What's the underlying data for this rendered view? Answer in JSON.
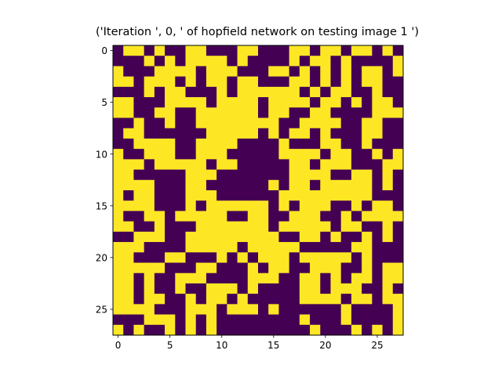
{
  "chart_data": {
    "type": "heatmap",
    "title": "('Iteration ', 0, ' of hopfield network on testing image 1 ')",
    "xlabel": "",
    "ylabel": "",
    "colormap": "viridis",
    "colors": {
      "low": "#440154",
      "high": "#fde725"
    },
    "xlim": [
      -0.5,
      27.5
    ],
    "ylim": [
      27.5,
      -0.5
    ],
    "xticks": [
      0,
      5,
      10,
      15,
      20,
      25
    ],
    "yticks": [
      0,
      5,
      10,
      15,
      20,
      25
    ],
    "grid": false,
    "rows": [
      "0110100110001100011011011010",
      "0001010111101000010110100001",
      "1000111101110001101010101101",
      "1101110101101100011010101100",
      "0001011000101111110101100100",
      "1100011110111101111011010110",
      "1100110011111101100110000111",
      "0010010011111111001111001100",
      "0110000001111101011010001100",
      "0011110011110000100011001000",
      "1001110011100000111101100101",
      "1110111110110000011011100011",
      "1100000111000000011110011010",
      "1111000110000001011011111010",
      "1011000111000000111111111000",
      "1111000101111110101110010110",
      "1001101111100110011100101111",
      "1100100011111110111110110010",
      "0011100111111111001101001010",
      "1110000111110111110000011000",
      "1100011000101011101111101000",
      "1111100011000101100111001011",
      "1101001110000111001101011011",
      "1101001001110100001101110010",
      "1101100101101000001111011011",
      "1111000111011101000000100001",
      "0001110101000000001000100001",
      "1010010101000000000100010101"
    ]
  }
}
